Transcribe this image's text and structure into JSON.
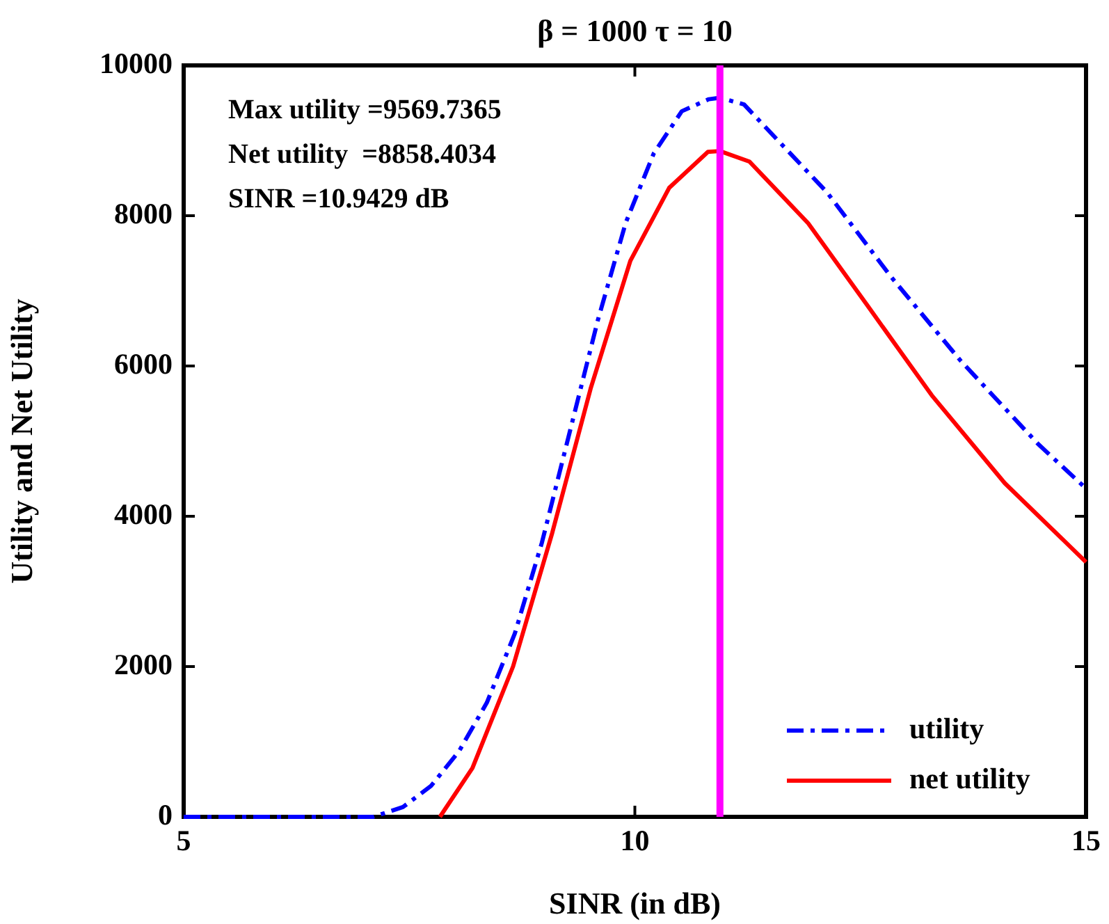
{
  "chart_data": {
    "type": "line",
    "title": "β = 1000 τ = 10",
    "xlabel": "SINR (in dB)",
    "ylabel": "Utility and Net Utility",
    "xlim": [
      5,
      15
    ],
    "xticks": [
      5,
      10,
      15
    ],
    "ylim": [
      0,
      10000
    ],
    "yticks": [
      0,
      2000,
      4000,
      6000,
      8000,
      10000
    ],
    "grid": false,
    "legend": "bottom right",
    "marker": "none",
    "annotations": [
      "Max utility =9569.7365",
      "Net utility  =8858.4034",
      "SINR =10.9429 dB"
    ],
    "ref_lines": [
      {
        "axis": "x",
        "value": 10.9429,
        "color": "#ff00ff"
      }
    ],
    "series": [
      {
        "name": "utility",
        "color": "#0000ff",
        "line_style": "dashed",
        "x": [
          5,
          7.1,
          7.43,
          7.74,
          8.05,
          8.36,
          8.67,
          8.97,
          9.28,
          9.59,
          9.9,
          10.21,
          10.52,
          10.82,
          10.9429,
          11.21,
          12.13,
          12.84,
          13.61,
          14.47,
          15
        ],
        "values": [
          0,
          0,
          130,
          410,
          870,
          1520,
          2440,
          3650,
          5130,
          6610,
          7910,
          8830,
          9390,
          9550,
          9570,
          9480,
          8310,
          7185,
          6070,
          4960,
          4370
        ]
      },
      {
        "name": "net utility",
        "color": "#ff0000",
        "line_style": "solid",
        "x": [
          7.84,
          8.2,
          8.65,
          9.08,
          9.51,
          9.95,
          10.38,
          10.81,
          10.9429,
          11.27,
          11.92,
          12.58,
          13.29,
          14.1,
          15
        ],
        "values": [
          0,
          650,
          2000,
          3760,
          5700,
          7400,
          8370,
          8850,
          8860,
          8720,
          7900,
          6800,
          5610,
          4440,
          3390
        ]
      }
    ]
  }
}
